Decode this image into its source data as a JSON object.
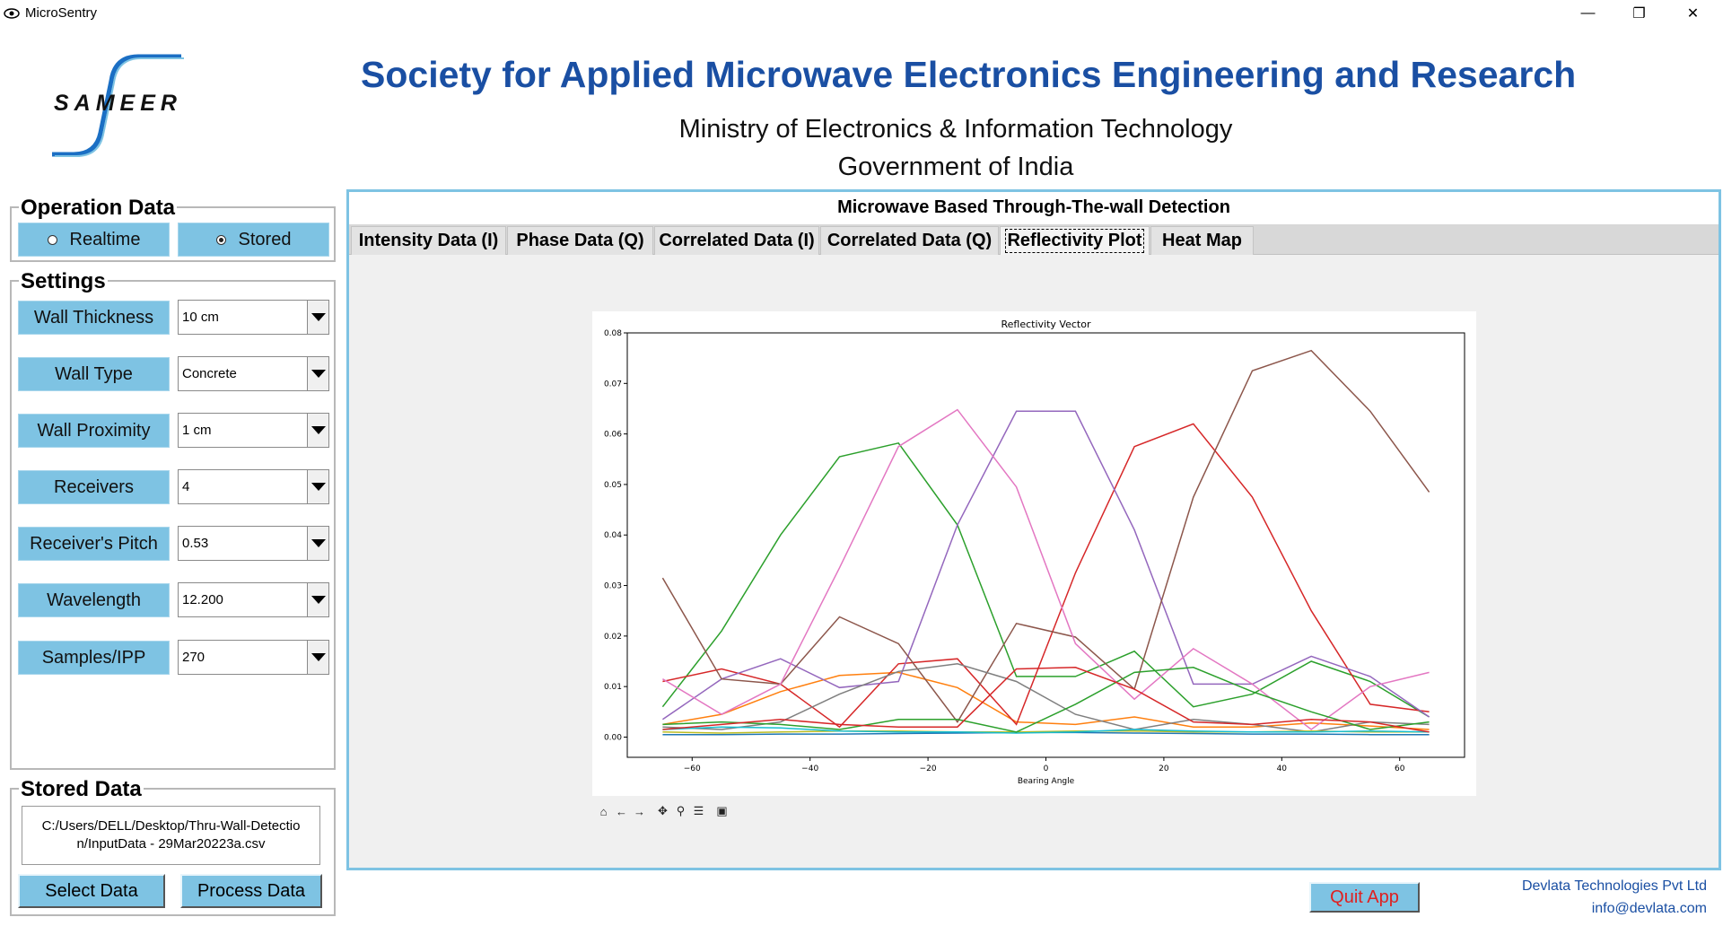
{
  "window": {
    "title": "MicroSentry",
    "minimize": "—",
    "maximize": "❐",
    "close": "✕"
  },
  "header": {
    "logo_text": "SAMEER",
    "org_title": "Society for Applied Microwave Electronics Engineering and Research",
    "ministry": "Ministry of Electronics & Information Technology",
    "government": "Government of India",
    "brand_color": "#1a4fa3"
  },
  "operation": {
    "label": "Operation Data",
    "realtime_label": "Realtime",
    "stored_label": "Stored",
    "selected": "Stored"
  },
  "settings": {
    "label": "Settings",
    "items": [
      {
        "label": "Wall Thickness",
        "value": "10 cm"
      },
      {
        "label": "Wall Type",
        "value": "Concrete"
      },
      {
        "label": "Wall Proximity",
        "value": "1 cm"
      },
      {
        "label": "Receivers",
        "value": "4"
      },
      {
        "label": "Receiver's Pitch",
        "value": "0.53"
      },
      {
        "label": "Wavelength",
        "value": "12.200"
      },
      {
        "label": "Samples/IPP",
        "value": "270"
      }
    ]
  },
  "stored_data": {
    "label": "Stored Data",
    "path_line1": "C:/Users/DELL/Desktop/Thru-Wall-Detectio",
    "path_line2": "n/InputData - 29Mar20223a.csv",
    "select_label": "Select Data",
    "process_label": "Process Data"
  },
  "main": {
    "title": "Microwave Based Through-The-wall Detection",
    "tabs": [
      {
        "label": "Intensity Data (I)"
      },
      {
        "label": "Phase Data (Q)"
      },
      {
        "label": "Correlated Data (I)"
      },
      {
        "label": "Correlated Data (Q)"
      },
      {
        "label": "Reflectivity Plot"
      },
      {
        "label": "Heat Map"
      }
    ],
    "active_tab": "Reflectivity Plot"
  },
  "toolbar_icons": [
    "home-icon",
    "back-icon",
    "forward-icon",
    "pan-icon",
    "zoom-icon",
    "configure-icon",
    "save-icon"
  ],
  "footer": {
    "quit_label": "Quit App",
    "company": "Devlata Technologies Pvt Ltd",
    "email": "info@devlata.com"
  },
  "chart_data": {
    "type": "line",
    "title": "Reflectivity Vector",
    "xlabel": "Bearing Angle",
    "ylabel": "",
    "xlim": [
      -71,
      71
    ],
    "ylim": [
      -0.004,
      0.08
    ],
    "xticks": [
      -60,
      -40,
      -20,
      0,
      20,
      40,
      60
    ],
    "yticks": [
      0.0,
      0.01,
      0.02,
      0.03,
      0.04,
      0.05,
      0.06,
      0.07,
      0.08
    ],
    "x": [
      -65,
      -55,
      -45,
      -35,
      -25,
      -15,
      -5,
      5,
      15,
      25,
      35,
      45,
      55,
      65
    ],
    "grid": false,
    "series": [
      {
        "color": "#1f77b4",
        "values": [
          0.0005,
          0.0005,
          0.0006,
          0.0006,
          0.0007,
          0.0008,
          0.0009,
          0.0009,
          0.0008,
          0.0007,
          0.0006,
          0.0006,
          0.0005,
          0.0005
        ]
      },
      {
        "color": "#ff7f0e",
        "values": [
          0.0025,
          0.0045,
          0.009,
          0.0122,
          0.0128,
          0.0098,
          0.003,
          0.0025,
          0.004,
          0.002,
          0.002,
          0.0028,
          0.0022,
          0.0015
        ]
      },
      {
        "color": "#2ca02c",
        "values": [
          0.006,
          0.021,
          0.04,
          0.0555,
          0.0582,
          0.042,
          0.012,
          0.012,
          0.017,
          0.006,
          0.0085,
          0.015,
          0.011,
          0.004
        ]
      },
      {
        "color": "#d62728",
        "values": [
          0.011,
          0.0135,
          0.0105,
          0.002,
          0.0145,
          0.0155,
          0.0025,
          0.0325,
          0.0575,
          0.062,
          0.0475,
          0.025,
          0.0065,
          0.005
        ]
      },
      {
        "color": "#9467bd",
        "values": [
          0.0035,
          0.0115,
          0.0155,
          0.0098,
          0.011,
          0.042,
          0.0645,
          0.0645,
          0.041,
          0.0105,
          0.0105,
          0.016,
          0.012,
          0.004
        ]
      },
      {
        "color": "#8c564b",
        "values": [
          0.0315,
          0.0115,
          0.0105,
          0.0238,
          0.0185,
          0.003,
          0.0225,
          0.0198,
          0.0095,
          0.0475,
          0.0725,
          0.0765,
          0.0645,
          0.0485
        ]
      },
      {
        "color": "#e377c2",
        "values": [
          0.0115,
          0.0045,
          0.0105,
          0.0335,
          0.0575,
          0.0648,
          0.0495,
          0.0185,
          0.0075,
          0.0175,
          0.0105,
          0.0015,
          0.01,
          0.0128
        ]
      },
      {
        "color": "#7f7f7f",
        "values": [
          0.002,
          0.0015,
          0.003,
          0.0085,
          0.013,
          0.0145,
          0.011,
          0.0045,
          0.0015,
          0.0035,
          0.0025,
          0.001,
          0.003,
          0.0025
        ]
      },
      {
        "color": "#bcbd22",
        "values": [
          0.001,
          0.0008,
          0.001,
          0.0012,
          0.0012,
          0.001,
          0.001,
          0.0012,
          0.0012,
          0.001,
          0.001,
          0.0012,
          0.001,
          0.001
        ]
      },
      {
        "color": "#17becf",
        "values": [
          0.0015,
          0.002,
          0.0018,
          0.0012,
          0.001,
          0.001,
          0.0008,
          0.001,
          0.0015,
          0.0012,
          0.001,
          0.001,
          0.0012,
          0.001
        ]
      },
      {
        "color": "#2ca02c",
        "values": [
          0.0025,
          0.003,
          0.0025,
          0.0015,
          0.0035,
          0.0035,
          0.001,
          0.0065,
          0.0128,
          0.0138,
          0.009,
          0.005,
          0.0015,
          0.003
        ]
      },
      {
        "color": "#d62728",
        "values": [
          0.0015,
          0.0025,
          0.0035,
          0.0025,
          0.002,
          0.002,
          0.0135,
          0.0138,
          0.0095,
          0.003,
          0.0025,
          0.0035,
          0.003,
          0.001
        ]
      }
    ]
  }
}
